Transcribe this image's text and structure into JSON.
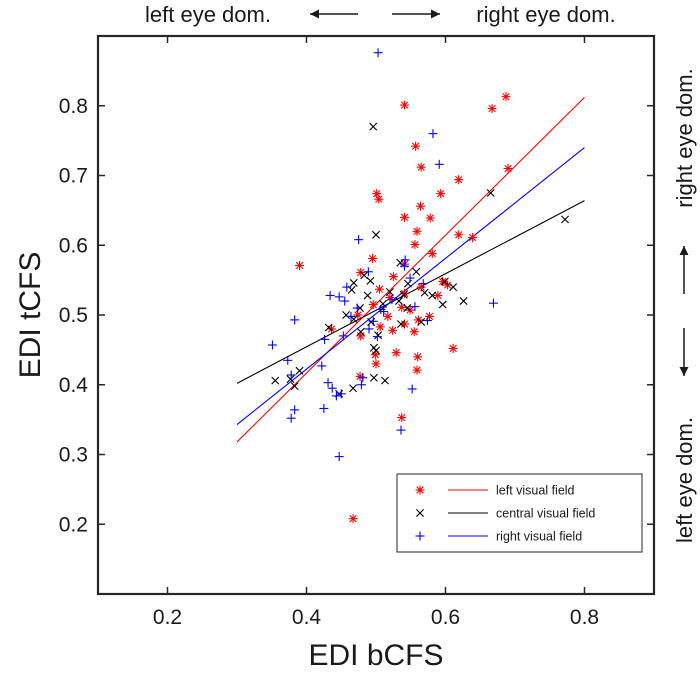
{
  "chart_data": {
    "type": "scatter",
    "title": "",
    "xlabel": "EDI bCFS",
    "ylabel": "EDI tCFS",
    "xlim": [
      0.1,
      0.9
    ],
    "ylim": [
      0.1,
      0.9
    ],
    "xticks": [
      0.2,
      0.4,
      0.6,
      0.8
    ],
    "yticks": [
      0.2,
      0.3,
      0.4,
      0.5,
      0.6,
      0.7,
      0.8
    ],
    "xtick_labels": [
      "0.2",
      "0.4",
      "0.6",
      "0.8"
    ],
    "ytick_labels": [
      "0.2",
      "0.3",
      "0.4",
      "0.5",
      "0.6",
      "0.7",
      "0.8"
    ],
    "grid": false,
    "legend_position": "bottom-right",
    "annotations": {
      "top_left": "left eye dom.",
      "top_right": "right eye dom.",
      "right_upper": "right eye dom.",
      "right_lower": "left eye dom."
    },
    "series": [
      {
        "name": "left visual field",
        "color": "#ff0000",
        "marker": "asterisk",
        "fit_line": [
          [
            0.3,
            0.318
          ],
          [
            0.8,
            0.812
          ]
        ],
        "points": [
          [
            0.687,
            0.813
          ],
          [
            0.667,
            0.796
          ],
          [
            0.541,
            0.801
          ],
          [
            0.557,
            0.742
          ],
          [
            0.565,
            0.712
          ],
          [
            0.69,
            0.71
          ],
          [
            0.619,
            0.694
          ],
          [
            0.501,
            0.674
          ],
          [
            0.504,
            0.666
          ],
          [
            0.593,
            0.674
          ],
          [
            0.564,
            0.656
          ],
          [
            0.578,
            0.639
          ],
          [
            0.541,
            0.64
          ],
          [
            0.559,
            0.62
          ],
          [
            0.619,
            0.615
          ],
          [
            0.639,
            0.611
          ],
          [
            0.556,
            0.601
          ],
          [
            0.39,
            0.571
          ],
          [
            0.581,
            0.588
          ],
          [
            0.495,
            0.581
          ],
          [
            0.541,
            0.573
          ],
          [
            0.478,
            0.561
          ],
          [
            0.525,
            0.555
          ],
          [
            0.596,
            0.548
          ],
          [
            0.603,
            0.543
          ],
          [
            0.565,
            0.54
          ],
          [
            0.505,
            0.537
          ],
          [
            0.541,
            0.531
          ],
          [
            0.589,
            0.528
          ],
          [
            0.52,
            0.525
          ],
          [
            0.496,
            0.515
          ],
          [
            0.537,
            0.511
          ],
          [
            0.549,
            0.507
          ],
          [
            0.517,
            0.498
          ],
          [
            0.474,
            0.5
          ],
          [
            0.577,
            0.498
          ],
          [
            0.561,
            0.493
          ],
          [
            0.541,
            0.487
          ],
          [
            0.555,
            0.476
          ],
          [
            0.506,
            0.483
          ],
          [
            0.524,
            0.478
          ],
          [
            0.436,
            0.48
          ],
          [
            0.478,
            0.47
          ],
          [
            0.611,
            0.452
          ],
          [
            0.529,
            0.446
          ],
          [
            0.499,
            0.443
          ],
          [
            0.56,
            0.44
          ],
          [
            0.5,
            0.43
          ],
          [
            0.559,
            0.421
          ],
          [
            0.477,
            0.412
          ],
          [
            0.537,
            0.353
          ],
          [
            0.467,
            0.208
          ]
        ]
      },
      {
        "name": "central visual field",
        "color": "#000000",
        "marker": "x",
        "fit_line": [
          [
            0.3,
            0.402
          ],
          [
            0.8,
            0.664
          ]
        ],
        "points": [
          [
            0.496,
            0.77
          ],
          [
            0.772,
            0.637
          ],
          [
            0.665,
            0.675
          ],
          [
            0.5,
            0.615
          ],
          [
            0.535,
            0.575
          ],
          [
            0.558,
            0.562
          ],
          [
            0.483,
            0.557
          ],
          [
            0.492,
            0.549
          ],
          [
            0.468,
            0.546
          ],
          [
            0.599,
            0.548
          ],
          [
            0.546,
            0.545
          ],
          [
            0.611,
            0.54
          ],
          [
            0.465,
            0.536
          ],
          [
            0.57,
            0.532
          ],
          [
            0.52,
            0.533
          ],
          [
            0.54,
            0.529
          ],
          [
            0.488,
            0.528
          ],
          [
            0.581,
            0.528
          ],
          [
            0.626,
            0.52
          ],
          [
            0.596,
            0.515
          ],
          [
            0.51,
            0.516
          ],
          [
            0.545,
            0.51
          ],
          [
            0.533,
            0.52
          ],
          [
            0.477,
            0.51
          ],
          [
            0.457,
            0.5
          ],
          [
            0.468,
            0.494
          ],
          [
            0.565,
            0.49
          ],
          [
            0.536,
            0.487
          ],
          [
            0.493,
            0.49
          ],
          [
            0.432,
            0.482
          ],
          [
            0.503,
            0.471
          ],
          [
            0.478,
            0.476
          ],
          [
            0.497,
            0.453
          ],
          [
            0.5,
            0.449
          ],
          [
            0.355,
            0.406
          ],
          [
            0.377,
            0.408
          ],
          [
            0.39,
            0.42
          ],
          [
            0.383,
            0.398
          ],
          [
            0.497,
            0.41
          ],
          [
            0.513,
            0.406
          ],
          [
            0.467,
            0.395
          ],
          [
            0.447,
            0.387
          ]
        ]
      },
      {
        "name": "right visual field",
        "color": "#0000ff",
        "marker": "plus",
        "fit_line": [
          [
            0.3,
            0.343
          ],
          [
            0.8,
            0.74
          ]
        ],
        "points": [
          [
            0.503,
            0.876
          ],
          [
            0.582,
            0.76
          ],
          [
            0.591,
            0.716
          ],
          [
            0.475,
            0.608
          ],
          [
            0.542,
            0.579
          ],
          [
            0.541,
            0.57
          ],
          [
            0.489,
            0.562
          ],
          [
            0.549,
            0.553
          ],
          [
            0.458,
            0.54
          ],
          [
            0.568,
            0.545
          ],
          [
            0.447,
            0.526
          ],
          [
            0.434,
            0.528
          ],
          [
            0.523,
            0.522
          ],
          [
            0.455,
            0.52
          ],
          [
            0.669,
            0.517
          ],
          [
            0.507,
            0.508
          ],
          [
            0.556,
            0.512
          ],
          [
            0.473,
            0.51
          ],
          [
            0.464,
            0.498
          ],
          [
            0.383,
            0.493
          ],
          [
            0.511,
            0.505
          ],
          [
            0.574,
            0.492
          ],
          [
            0.496,
            0.491
          ],
          [
            0.49,
            0.48
          ],
          [
            0.453,
            0.47
          ],
          [
            0.502,
            0.469
          ],
          [
            0.426,
            0.465
          ],
          [
            0.351,
            0.457
          ],
          [
            0.373,
            0.435
          ],
          [
            0.422,
            0.427
          ],
          [
            0.378,
            0.414
          ],
          [
            0.481,
            0.41
          ],
          [
            0.431,
            0.403
          ],
          [
            0.437,
            0.395
          ],
          [
            0.45,
            0.387
          ],
          [
            0.443,
            0.384
          ],
          [
            0.552,
            0.394
          ],
          [
            0.479,
            0.4
          ],
          [
            0.425,
            0.366
          ],
          [
            0.378,
            0.352
          ],
          [
            0.536,
            0.335
          ],
          [
            0.447,
            0.297
          ],
          [
            0.383,
            0.364
          ]
        ]
      }
    ]
  }
}
